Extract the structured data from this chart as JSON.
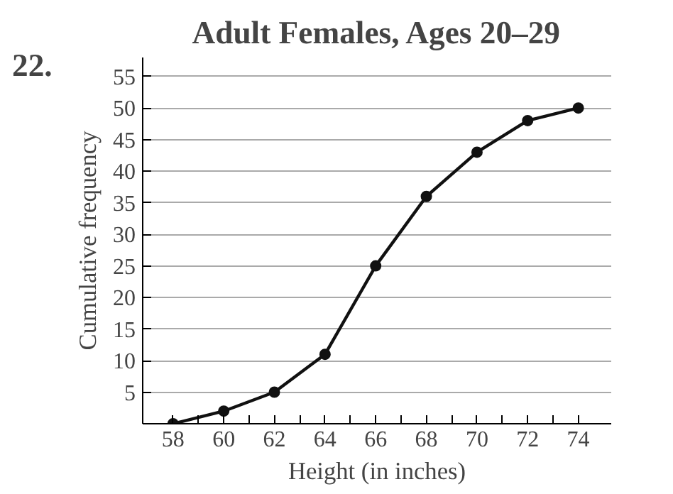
{
  "chart_data": {
    "type": "line",
    "title": "Adult Females, Ages 20–29",
    "annotations": [
      "22."
    ],
    "xlabel": "Height (in inches)",
    "ylabel": "Cumulative frequency",
    "x": [
      58,
      60,
      62,
      64,
      66,
      68,
      70,
      72,
      74
    ],
    "series": [
      {
        "color": "#111111",
        "values": [
          0,
          2,
          5,
          11,
          25,
          36,
          43,
          48,
          50
        ]
      }
    ],
    "xlim": [
      56.8,
      75.3
    ],
    "ylim": [
      0,
      58
    ],
    "xticks": [
      58,
      {
        "value": 59,
        "label": null
      },
      60,
      {
        "value": 61,
        "label": null
      },
      62,
      {
        "value": 63,
        "label": null
      },
      64,
      {
        "value": 65,
        "label": null
      },
      66,
      {
        "value": 67,
        "label": null
      },
      68,
      {
        "value": 69,
        "label": null
      },
      70,
      {
        "value": 71,
        "label": null
      },
      72,
      {
        "value": 73,
        "label": null
      },
      74
    ],
    "yticks": [
      5,
      10,
      15,
      20,
      25,
      30,
      35,
      40,
      45,
      50,
      55
    ],
    "grid": "y",
    "marker": "circle",
    "line_style": "solid"
  }
}
